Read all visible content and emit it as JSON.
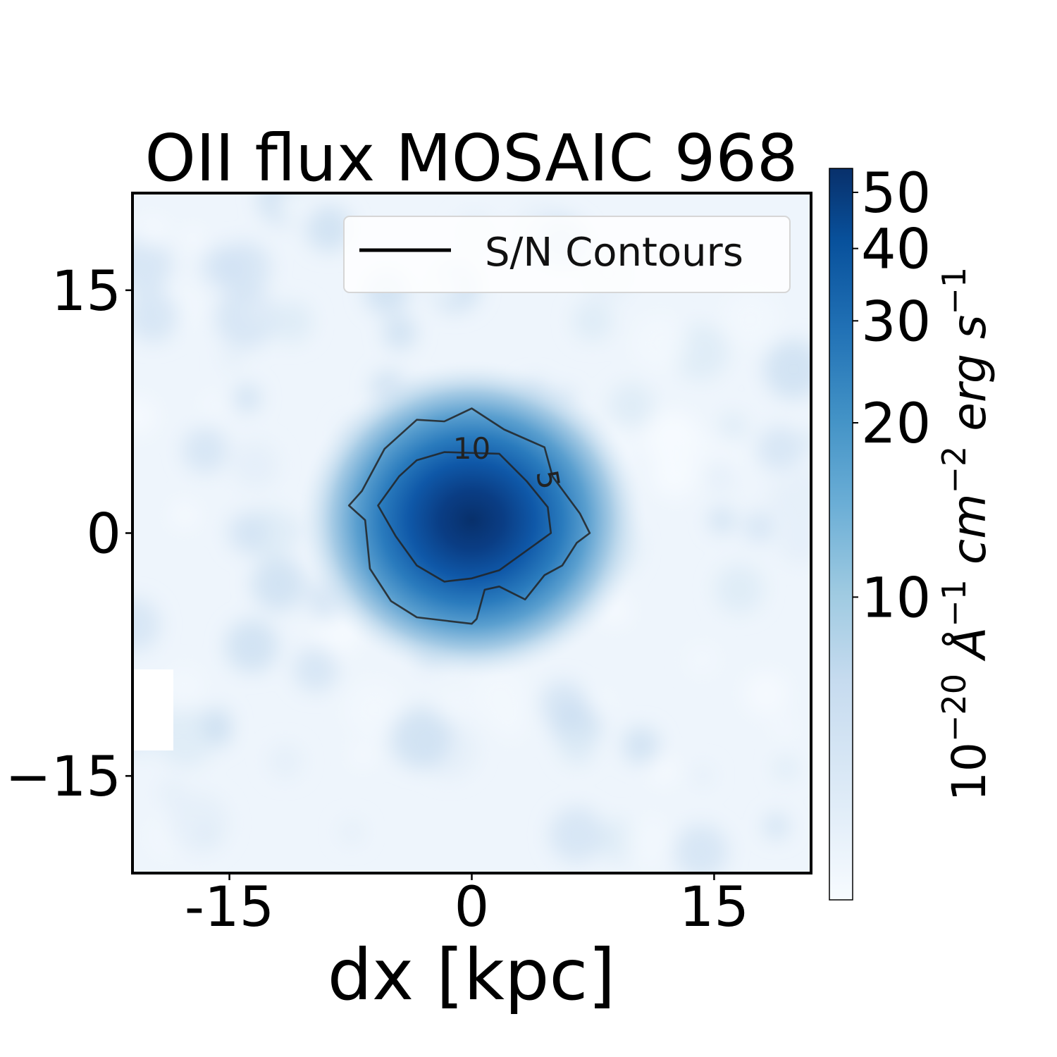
{
  "chart_data": {
    "type": "heatmap",
    "title": "OII flux MOSAIC 968",
    "xlabel": "dx [kpc]",
    "ylabel": "",
    "xlim": [
      -21,
      21
    ],
    "ylim": [
      -21,
      21
    ],
    "x_ticks": [
      -15,
      0,
      15
    ],
    "x_tick_labels": [
      "-15",
      "0",
      "15"
    ],
    "y_ticks": [
      15,
      0,
      -15
    ],
    "y_tick_labels": [
      "15",
      "0",
      "−15"
    ],
    "colormap": "Blues",
    "colorbar": {
      "label_base": "10",
      "label_exp1": "−20",
      "label_unit1": " Å",
      "label_exp2": "−1",
      "label_unit2": " cm",
      "label_exp3": "−2",
      "label_unit3": " erg s",
      "label_exp4": "−1",
      "scale": "log",
      "range": [
        3,
        55
      ],
      "ticks": [
        10,
        20,
        30,
        40,
        50
      ],
      "tick_labels": [
        "10",
        "20",
        "30",
        "40",
        "50"
      ]
    },
    "source": {
      "center": [
        0,
        0.8
      ],
      "peak_flux": 55,
      "sigma_x": 4.6,
      "sigma_y": 3.6
    },
    "background_flux": 4,
    "legend": {
      "label": "S/N Contours",
      "position": "top-right"
    },
    "contours": [
      {
        "level": 5,
        "label": "5",
        "points": [
          [
            -7.6,
            1.7
          ],
          [
            -6.8,
            2.6
          ],
          [
            -5.4,
            5.2
          ],
          [
            -3.4,
            7.0
          ],
          [
            -1.7,
            6.9
          ],
          [
            0,
            7.7
          ],
          [
            2.0,
            6.4
          ],
          [
            4.5,
            5.3
          ],
          [
            5.0,
            3.5
          ],
          [
            6.7,
            1.2
          ],
          [
            7.3,
            0
          ],
          [
            6.5,
            -0.6
          ],
          [
            5.6,
            -2.0
          ],
          [
            4.5,
            -2.6
          ],
          [
            3.3,
            -4.1
          ],
          [
            1.7,
            -3.3
          ],
          [
            0.8,
            -3.5
          ],
          [
            0.3,
            -5.3
          ],
          [
            0,
            -5.6
          ],
          [
            -3.4,
            -5.2
          ],
          [
            -5.0,
            -4.2
          ],
          [
            -6.3,
            -2.2
          ],
          [
            -6.6,
            0.8
          ],
          [
            -7.6,
            1.7
          ]
        ],
        "label_pos": [
          4.7,
          3.3
        ],
        "label_rotation": 80
      },
      {
        "level": 10,
        "label": "10",
        "points": [
          [
            -5.8,
            1.7
          ],
          [
            -4.5,
            3.5
          ],
          [
            -3.4,
            4.5
          ],
          [
            -1.7,
            5.0
          ],
          [
            1.7,
            4.9
          ],
          [
            3.4,
            3.2
          ],
          [
            4.7,
            1.6
          ],
          [
            4.9,
            0
          ],
          [
            1.7,
            -2.3
          ],
          [
            0,
            -2.8
          ],
          [
            -1.7,
            -3.0
          ],
          [
            -3.4,
            -2.0
          ],
          [
            -4.7,
            -0.2
          ],
          [
            -5.8,
            1.7
          ]
        ],
        "label_pos": [
          0,
          5.2
        ],
        "label_rotation": 0
      }
    ]
  }
}
